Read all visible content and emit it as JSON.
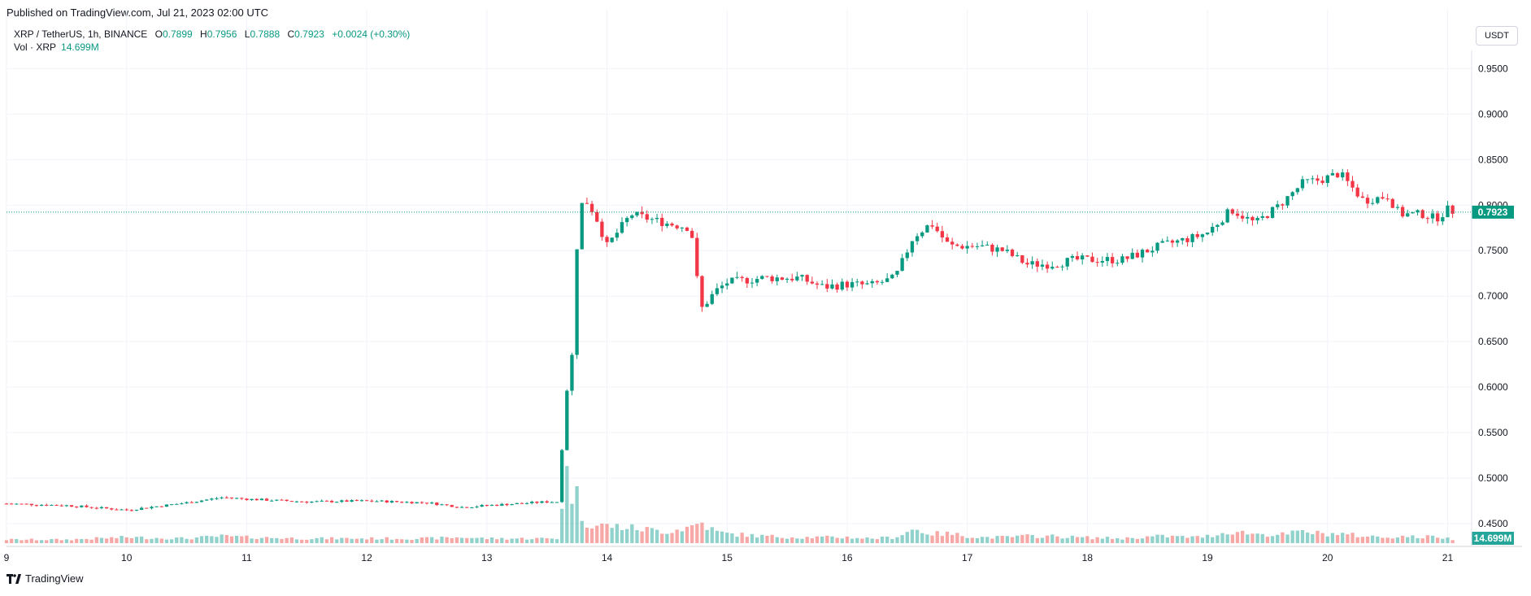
{
  "published": "Published on TradingView.com, Jul 21, 2023 02:00 UTC",
  "legend": {
    "symbol": "XRP / TetherUS, 1h, BINANCE",
    "o_label": "O",
    "o": "0.7899",
    "h_label": "H",
    "h": "0.7956",
    "l_label": "L",
    "l": "0.7888",
    "c_label": "C",
    "c": "0.7923",
    "change": "+0.0024 (+0.30%)",
    "vol_label": "Vol · XRP",
    "vol_value": "14.699M"
  },
  "currency_button": "USDT",
  "brand": "TradingView",
  "colors": {
    "up": "#26a69a",
    "down": "#ef5350",
    "up_line": "#089981",
    "down_line": "#f23645",
    "grid": "#f0f3fa"
  },
  "chart_data": {
    "type": "candlestick",
    "title": "XRP / TetherUS, 1h, BINANCE",
    "ylim": [
      0.425,
      0.97
    ],
    "yticks": [
      0.45,
      0.5,
      0.55,
      0.6,
      0.65,
      0.7,
      0.75,
      0.8,
      0.85,
      0.9,
      0.95
    ],
    "ytick_labels": [
      "0.4500",
      "0.5000",
      "0.5500",
      "0.6000",
      "0.6500",
      "0.7000",
      "0.7500",
      "0.8000",
      "0.8500",
      "0.9000",
      "0.9500"
    ],
    "xticks": [
      9,
      10,
      11,
      12,
      13,
      14,
      15,
      16,
      17,
      18,
      19,
      20,
      21
    ],
    "xtick_labels": [
      "9",
      "10",
      "11",
      "12",
      "13",
      "14",
      "15",
      "16",
      "17",
      "18",
      "19",
      "20",
      "21"
    ],
    "xlim": [
      9.0,
      21.2
    ],
    "last_price": 0.7923,
    "last_price_label": "0.7923",
    "last_volume_label": "14.699M",
    "anchors": [
      [
        9.0,
        0.472,
        0.3
      ],
      [
        9.5,
        0.47,
        0.3
      ],
      [
        10.0,
        0.465,
        0.5
      ],
      [
        10.5,
        0.473,
        0.4
      ],
      [
        10.8,
        0.479,
        0.6
      ],
      [
        11.0,
        0.477,
        0.5
      ],
      [
        11.5,
        0.474,
        0.4
      ],
      [
        12.0,
        0.475,
        0.4
      ],
      [
        12.5,
        0.473,
        0.4
      ],
      [
        12.8,
        0.468,
        0.5
      ],
      [
        13.0,
        0.47,
        0.4
      ],
      [
        13.5,
        0.474,
        0.4
      ],
      [
        13.6,
        0.474,
        0.4
      ],
      [
        13.65,
        0.59,
        6.5
      ],
      [
        13.7,
        0.61,
        4.5
      ],
      [
        13.75,
        0.755,
        4.0
      ],
      [
        13.8,
        0.81,
        2.0
      ],
      [
        13.9,
        0.79,
        1.5
      ],
      [
        14.0,
        0.755,
        1.5
      ],
      [
        14.2,
        0.79,
        1.3
      ],
      [
        14.5,
        0.78,
        1.0
      ],
      [
        14.7,
        0.775,
        1.4
      ],
      [
        14.78,
        0.685,
        1.8
      ],
      [
        14.9,
        0.705,
        1.0
      ],
      [
        15.0,
        0.715,
        0.8
      ],
      [
        15.3,
        0.72,
        0.6
      ],
      [
        15.6,
        0.72,
        0.5
      ],
      [
        15.8,
        0.71,
        0.5
      ],
      [
        16.0,
        0.713,
        0.5
      ],
      [
        16.2,
        0.712,
        0.4
      ],
      [
        16.4,
        0.72,
        0.5
      ],
      [
        16.55,
        0.765,
        1.2
      ],
      [
        16.7,
        0.78,
        0.8
      ],
      [
        16.85,
        0.755,
        0.8
      ],
      [
        17.1,
        0.755,
        0.5
      ],
      [
        17.3,
        0.75,
        0.5
      ],
      [
        17.5,
        0.735,
        0.6
      ],
      [
        17.7,
        0.735,
        0.6
      ],
      [
        17.9,
        0.74,
        0.5
      ],
      [
        18.3,
        0.74,
        0.4
      ],
      [
        18.6,
        0.755,
        0.6
      ],
      [
        18.9,
        0.765,
        0.5
      ],
      [
        19.0,
        0.77,
        0.6
      ],
      [
        19.2,
        0.795,
        1.0
      ],
      [
        19.4,
        0.78,
        0.8
      ],
      [
        19.6,
        0.8,
        0.7
      ],
      [
        19.8,
        0.825,
        1.0
      ],
      [
        19.95,
        0.828,
        0.8
      ],
      [
        20.1,
        0.835,
        0.8
      ],
      [
        20.3,
        0.805,
        0.6
      ],
      [
        20.5,
        0.81,
        0.5
      ],
      [
        20.6,
        0.79,
        0.6
      ],
      [
        20.8,
        0.79,
        0.5
      ],
      [
        20.9,
        0.785,
        0.6
      ],
      [
        21.0,
        0.795,
        0.4
      ],
      [
        21.08,
        0.7923,
        0.3
      ]
    ]
  }
}
